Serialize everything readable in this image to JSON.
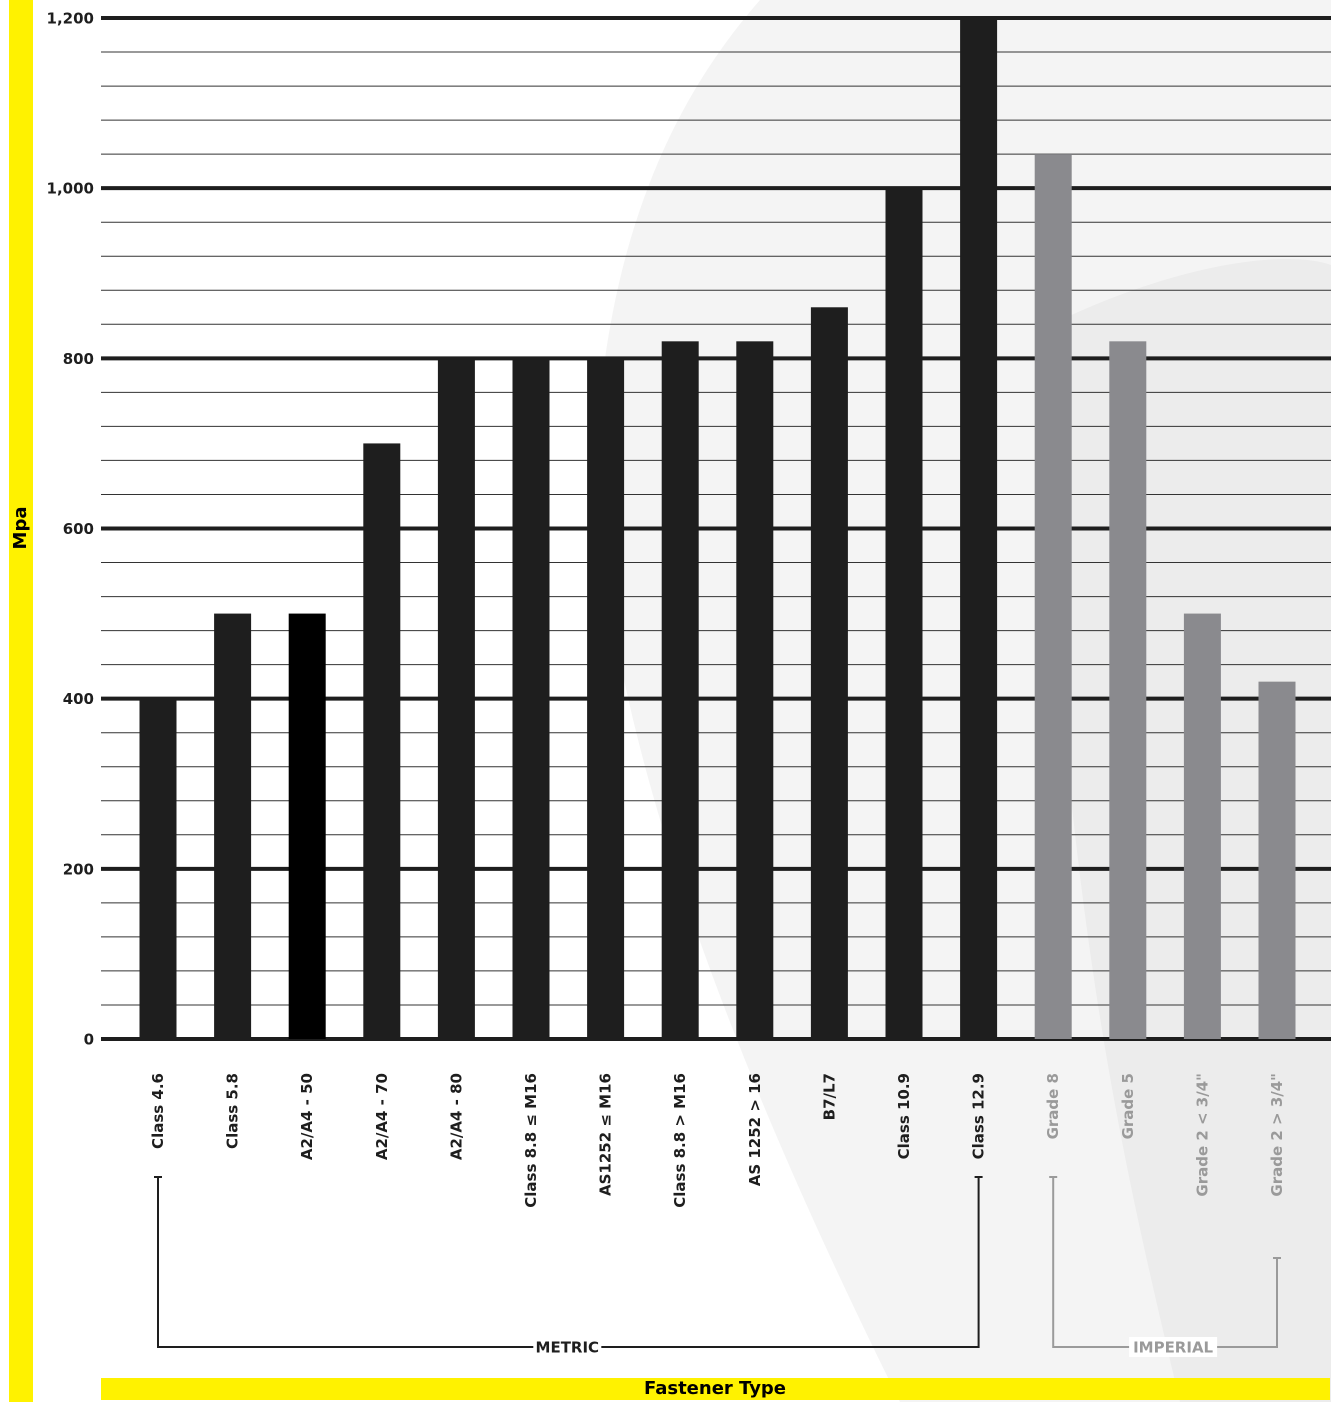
{
  "chart_data": {
    "type": "bar",
    "title": "",
    "xlabel": "Fastener Type",
    "ylabel": "Mpa",
    "ylim": [
      0,
      1200
    ],
    "y_ticks": [
      "0",
      "200",
      "400",
      "600",
      "800",
      "1,000",
      "1,200"
    ],
    "grid": true,
    "categories": [
      "Class 4.6",
      "Class 5.8",
      "A2/A4 - 50",
      "A2/A4 - 70",
      "A2/A4 - 80",
      "Class 8.8 ≤ M16",
      "AS1252 ≤ M16",
      "Class 8.8 > M16",
      "AS 1252 > 16",
      "B7/L7",
      "Class 10.9",
      "Class 12.9",
      "Grade 8",
      "Grade 5",
      "Grade 2 < 3/4\"",
      "Grade 2 > 3/4\""
    ],
    "values": [
      400,
      500,
      500,
      700,
      800,
      800,
      800,
      820,
      820,
      860,
      1000,
      1200,
      1040,
      820,
      500,
      420
    ],
    "groups": [
      {
        "label": "METRIC",
        "color": "#1e1e1e",
        "first": 0,
        "last": 11
      },
      {
        "label": "IMPERIAL",
        "color": "#9a9a9a",
        "first": 12,
        "last": 15
      }
    ],
    "colors": {
      "metric_bar": "#1e1e1e",
      "a2_bar": "#000000",
      "imperial_bar": "#8a8a8e",
      "imperial_label": "#9a9a9a",
      "accent": "#fff200"
    }
  }
}
